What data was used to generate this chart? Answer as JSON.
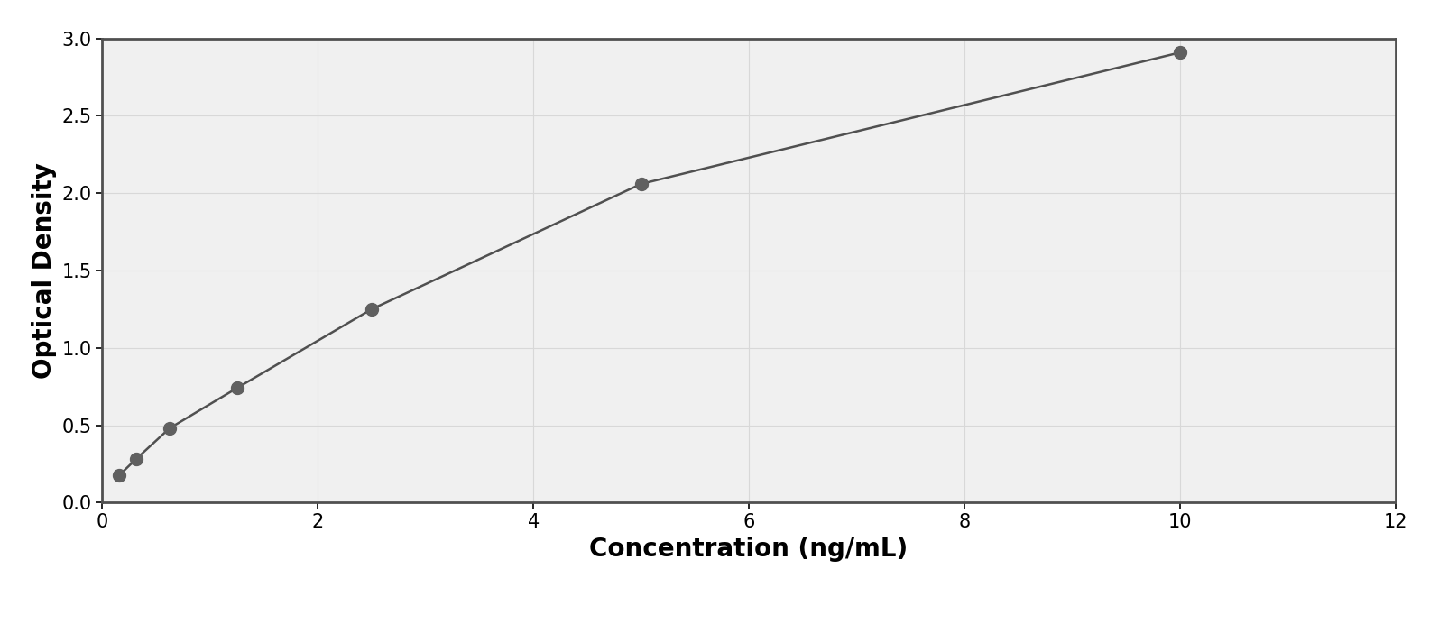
{
  "x_data": [
    0.156,
    0.313,
    0.625,
    1.25,
    2.5,
    5.0,
    10.0
  ],
  "y_data": [
    0.175,
    0.28,
    0.48,
    0.74,
    1.25,
    2.06,
    2.91
  ],
  "xlabel": "Concentration (ng/mL)",
  "ylabel": "Optical Density",
  "xlim": [
    0,
    12
  ],
  "ylim": [
    0,
    3.0
  ],
  "xticks": [
    0,
    2,
    4,
    6,
    8,
    10,
    12
  ],
  "yticks": [
    0,
    0.5,
    1.0,
    1.5,
    2.0,
    2.5,
    3.0
  ],
  "data_color": "#606060",
  "line_color": "#505050",
  "background_color": "#ffffff",
  "plot_bg_color": "#f0f0f0",
  "border_color": "#505050",
  "grid_color": "#d8d8d8",
  "marker_size": 10,
  "line_width": 1.8,
  "xlabel_fontsize": 20,
  "ylabel_fontsize": 20,
  "tick_fontsize": 15,
  "xlabel_fontweight": "bold",
  "ylabel_fontweight": "bold"
}
